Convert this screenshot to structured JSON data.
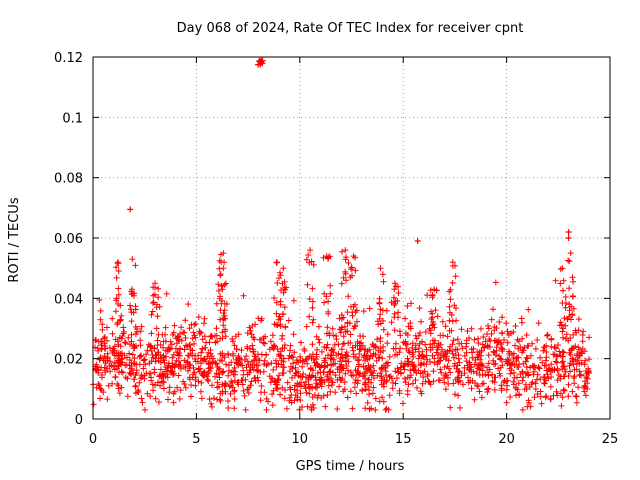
{
  "chart_data": {
    "type": "scatter",
    "title": "Day 068 of 2024, Rate Of TEC Index for receiver cpnt",
    "xlabel": "GPS time / hours",
    "ylabel": "ROTI / TECUs",
    "xlim": [
      0,
      25
    ],
    "ylim": [
      0,
      0.12
    ],
    "xticks": [
      0,
      5,
      10,
      15,
      20,
      25
    ],
    "xtick_labels": [
      "0",
      "5",
      "10",
      "15",
      "20",
      "25"
    ],
    "yticks": [
      0,
      0.02,
      0.04,
      0.06,
      0.08,
      0.1,
      0.12
    ],
    "ytick_labels": [
      "0",
      "0.02",
      "0.04",
      "0.06",
      "0.08",
      "0.1",
      "0.12"
    ],
    "grid": true,
    "marker": "plus",
    "series_color": "#ff0000",
    "series": [
      {
        "name": "ROTI",
        "summary": {
          "x_range": [
            0,
            24
          ],
          "typical_band": [
            0.005,
            0.035
          ],
          "bulk_mean": 0.018
        },
        "outliers": [
          {
            "x": 1.8,
            "y": 0.0695
          },
          {
            "x": 8.1,
            "y": 0.118
          },
          {
            "x": 15.7,
            "y": 0.059
          },
          {
            "x": 23.0,
            "y": 0.062
          },
          {
            "x": 23.0,
            "y": 0.06
          }
        ],
        "spikes": [
          {
            "x": 1.2,
            "y": 0.052
          },
          {
            "x": 1.9,
            "y": 0.053
          },
          {
            "x": 3.0,
            "y": 0.045
          },
          {
            "x": 6.3,
            "y": 0.055
          },
          {
            "x": 6.2,
            "y": 0.052
          },
          {
            "x": 8.9,
            "y": 0.052
          },
          {
            "x": 9.2,
            "y": 0.05
          },
          {
            "x": 10.5,
            "y": 0.056
          },
          {
            "x": 11.3,
            "y": 0.054
          },
          {
            "x": 12.2,
            "y": 0.056
          },
          {
            "x": 12.6,
            "y": 0.054
          },
          {
            "x": 13.9,
            "y": 0.05
          },
          {
            "x": 14.6,
            "y": 0.045
          },
          {
            "x": 16.5,
            "y": 0.043
          },
          {
            "x": 17.4,
            "y": 0.052
          },
          {
            "x": 22.7,
            "y": 0.05
          },
          {
            "x": 23.1,
            "y": 0.055
          }
        ]
      }
    ]
  }
}
